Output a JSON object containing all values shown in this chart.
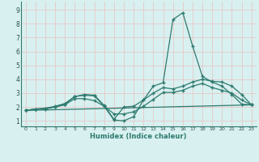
{
  "xlabel": "Humidex (Indice chaleur)",
  "background_color": "#d8f0f0",
  "grid_color": "#e8c8c8",
  "line_color": "#2d7a6e",
  "xlim": [
    -0.5,
    23.5
  ],
  "ylim": [
    0.6,
    9.6
  ],
  "xticks": [
    0,
    1,
    2,
    3,
    4,
    5,
    6,
    7,
    8,
    9,
    10,
    11,
    12,
    13,
    14,
    15,
    16,
    17,
    18,
    19,
    20,
    21,
    22,
    23
  ],
  "yticks": [
    1,
    2,
    3,
    4,
    5,
    6,
    7,
    8,
    9
  ],
  "line1_x": [
    0,
    1,
    2,
    3,
    4,
    5,
    6,
    7,
    8,
    9,
    10,
    11,
    12,
    13,
    14,
    15,
    16,
    17,
    18,
    19,
    20,
    21,
    22,
    23
  ],
  "line1_y": [
    1.75,
    1.85,
    1.9,
    2.0,
    2.2,
    2.75,
    2.85,
    2.8,
    2.05,
    1.05,
    1.0,
    1.3,
    2.5,
    3.5,
    3.75,
    8.3,
    8.8,
    6.4,
    4.2,
    3.8,
    3.5,
    2.9,
    2.2,
    2.15
  ],
  "line2_x": [
    0,
    1,
    2,
    3,
    4,
    5,
    6,
    7,
    8,
    9,
    10,
    11,
    12,
    13,
    14,
    15,
    16,
    17,
    18,
    19,
    20,
    21,
    22,
    23
  ],
  "line2_y": [
    1.75,
    1.85,
    1.9,
    2.05,
    2.25,
    2.75,
    2.9,
    2.85,
    2.1,
    1.1,
    2.0,
    2.05,
    2.5,
    3.0,
    3.4,
    3.3,
    3.5,
    3.8,
    4.0,
    3.85,
    3.8,
    3.5,
    2.9,
    2.15
  ],
  "line3_x": [
    0,
    1,
    2,
    3,
    4,
    5,
    6,
    7,
    8,
    9,
    10,
    11,
    12,
    13,
    14,
    15,
    16,
    17,
    18,
    19,
    20,
    21,
    22,
    23
  ],
  "line3_y": [
    1.75,
    1.85,
    1.85,
    2.0,
    2.15,
    2.6,
    2.6,
    2.45,
    2.05,
    1.5,
    1.5,
    1.65,
    2.05,
    2.55,
    3.05,
    3.05,
    3.2,
    3.5,
    3.7,
    3.4,
    3.2,
    3.0,
    2.5,
    2.15
  ],
  "line4_x": [
    0,
    23
  ],
  "line4_y": [
    1.75,
    2.15
  ]
}
